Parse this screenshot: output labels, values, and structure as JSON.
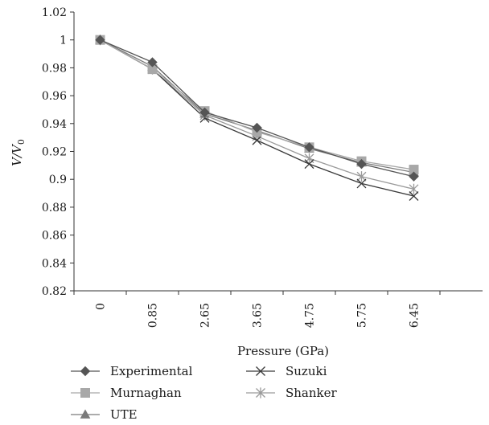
{
  "chart_data": {
    "type": "line",
    "categories": [
      "0",
      "0.85",
      "2.65",
      "3.65",
      "4.75",
      "5.75",
      "6.45"
    ],
    "xlabel": "Pressure (GPa)",
    "ylabel": "V/V",
    "ylabel_subscript": "0",
    "ylim": [
      0.82,
      1.02
    ],
    "yticks": [
      "0.82",
      "0.84",
      "0.86",
      "0.88",
      "0.9",
      "0.92",
      "0.94",
      "0.96",
      "0.98",
      "1",
      "1.02"
    ],
    "grid": false,
    "legend_position": "bottom",
    "series": [
      {
        "name": "Experimental",
        "marker": "diamond",
        "color": "#555555",
        "values": [
          1.0,
          0.984,
          0.948,
          0.937,
          0.923,
          0.911,
          0.902
        ]
      },
      {
        "name": "Murnaghan",
        "marker": "square",
        "color": "#a8a8a8",
        "values": [
          1.0,
          0.979,
          0.949,
          0.934,
          0.923,
          0.913,
          0.907
        ]
      },
      {
        "name": "UTE",
        "marker": "triangle",
        "color": "#7a7a7a",
        "values": [
          1.0,
          0.981,
          0.947,
          0.935,
          0.922,
          0.912,
          0.905
        ]
      },
      {
        "name": "Suzuki",
        "marker": "x",
        "color": "#3a3a3a",
        "values": [
          1.0,
          0.979,
          0.944,
          0.928,
          0.911,
          0.897,
          0.888
        ]
      },
      {
        "name": "Shanker",
        "marker": "asterisk",
        "color": "#9a9a9a",
        "values": [
          1.0,
          0.979,
          0.946,
          0.931,
          0.915,
          0.902,
          0.893
        ]
      }
    ]
  }
}
